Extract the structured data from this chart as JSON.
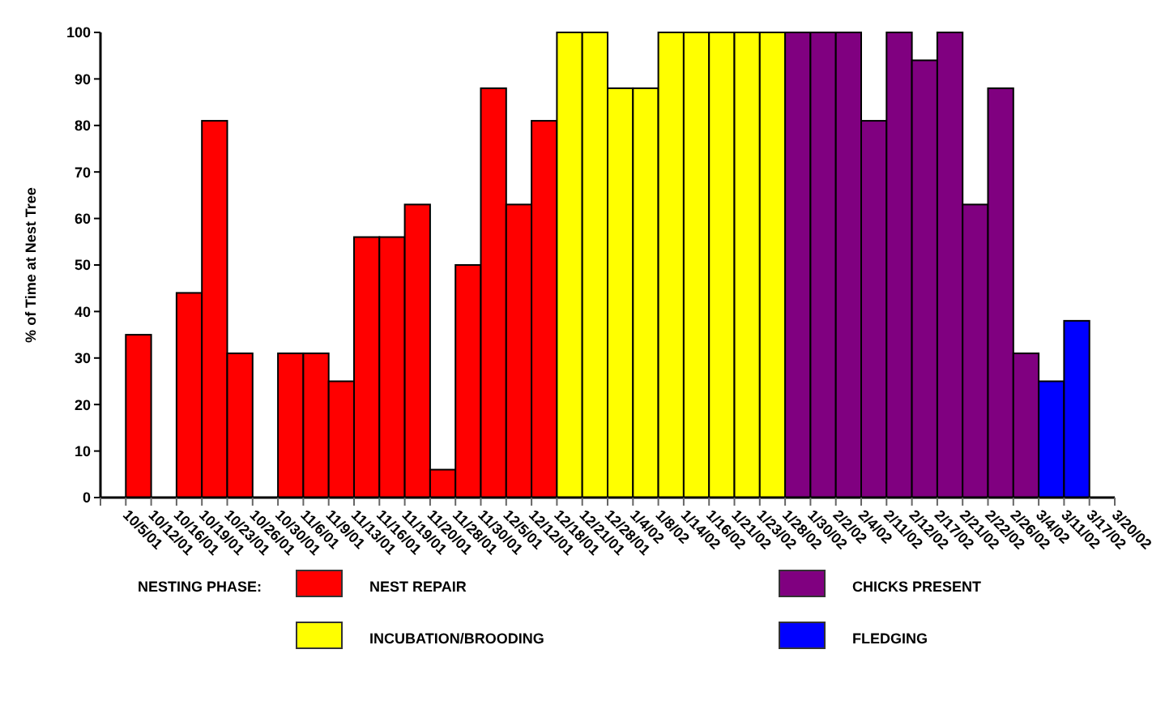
{
  "chart_data": {
    "type": "bar",
    "ylabel": "% of Time at Nest Tree",
    "legend_title": "NESTING PHASE:",
    "legend": "bottom",
    "categories": [
      "10/5/01",
      "10/12/01",
      "10/16/01",
      "10/19/01",
      "10/23/01",
      "10/26/01",
      "10/30/01",
      "11/6/01",
      "11/9/01",
      "11/13/01",
      "11/16/01",
      "11/19/01",
      "11/20/01",
      "11/28/01",
      "11/30/01",
      "12/5/01",
      "12/12/01",
      "12/18/01",
      "12/21/01",
      "12/28/01",
      "1/4/02",
      "1/8/02",
      "1/14/02",
      "1/16/02",
      "1/21/02",
      "1/23/02",
      "1/28/02",
      "1/30/02",
      "2/2/02",
      "2/4/02",
      "2/11/02",
      "2/12/02",
      "2/17/02",
      "2/21/02",
      "2/22/02",
      "2/26/02",
      "3/4/02",
      "3/11/02",
      "3/17/02",
      "3/20/02"
    ],
    "ylim": [
      0,
      100
    ],
    "yticks": [
      0,
      10,
      20,
      30,
      40,
      50,
      60,
      70,
      80,
      90,
      100
    ],
    "series": [
      {
        "name": "NEST REPAIR",
        "color": "#ff0000",
        "values": [
          0,
          35,
          0,
          44,
          81,
          31,
          0,
          31,
          31,
          25,
          56,
          56,
          63,
          6,
          50,
          88,
          63,
          81,
          null,
          null,
          null,
          null,
          null,
          null,
          null,
          null,
          null,
          null,
          null,
          null,
          null,
          null,
          null,
          null,
          null,
          null,
          null,
          null,
          null,
          null
        ]
      },
      {
        "name": "INCUBATION/BROODING",
        "color": "#ffff00",
        "values": [
          null,
          null,
          null,
          null,
          null,
          null,
          null,
          null,
          null,
          null,
          null,
          null,
          null,
          null,
          null,
          null,
          null,
          null,
          100,
          100,
          88,
          88,
          100,
          100,
          100,
          100,
          100,
          null,
          null,
          null,
          null,
          null,
          null,
          null,
          null,
          null,
          null,
          null,
          null,
          null
        ]
      },
      {
        "name": "CHICKS PRESENT",
        "color": "#800080",
        "values": [
          null,
          null,
          null,
          null,
          null,
          null,
          null,
          null,
          null,
          null,
          null,
          null,
          null,
          null,
          null,
          null,
          null,
          null,
          null,
          null,
          null,
          null,
          null,
          null,
          null,
          null,
          null,
          100,
          100,
          100,
          81,
          100,
          94,
          100,
          63,
          88,
          31,
          null,
          null,
          null
        ]
      },
      {
        "name": "FLEDGING",
        "color": "#0000ff",
        "values": [
          null,
          null,
          null,
          null,
          null,
          null,
          null,
          null,
          null,
          null,
          null,
          null,
          null,
          null,
          null,
          null,
          null,
          null,
          null,
          null,
          null,
          null,
          null,
          null,
          null,
          null,
          null,
          null,
          null,
          null,
          null,
          null,
          null,
          null,
          null,
          null,
          null,
          25,
          38,
          0
        ]
      }
    ]
  }
}
